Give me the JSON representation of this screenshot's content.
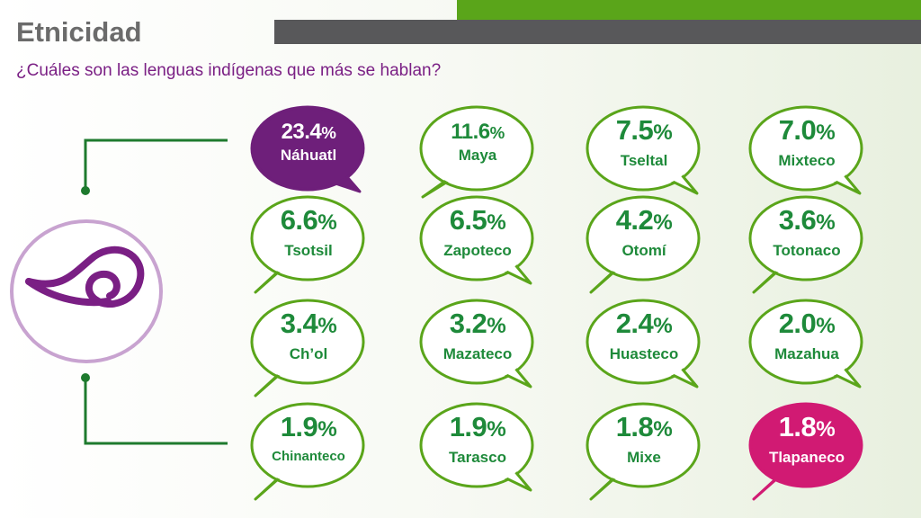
{
  "header": {
    "title": "Etnicidad",
    "subtitle": "¿Cuáles son las lenguas indígenas que más se hablan?"
  },
  "colors": {
    "green_text": "#1e8a3a",
    "bubble_outline": "#5aa51a",
    "highlight_top": "#6e1f7a",
    "highlight_bottom": "#d11a73",
    "topbar_green": "#5aa51a",
    "topbar_gray": "#58585a",
    "logo_purple": "#7a1f84"
  },
  "languages": [
    {
      "pct": "23.4",
      "sym": "%",
      "name": "Náhuatl"
    },
    {
      "pct": "11.6",
      "sym": "%",
      "name": "Maya"
    },
    {
      "pct": "7.5",
      "sym": "%",
      "name": "Tseltal"
    },
    {
      "pct": "7.0",
      "sym": "%",
      "name": "Mixteco"
    },
    {
      "pct": "6.6",
      "sym": "%",
      "name": "Tsotsil"
    },
    {
      "pct": "6.5",
      "sym": "%",
      "name": "Zapoteco"
    },
    {
      "pct": "4.2",
      "sym": "%",
      "name": "Otomí"
    },
    {
      "pct": "3.6",
      "sym": "%",
      "name": "Totonaco"
    },
    {
      "pct": "3.4",
      "sym": "%",
      "name": "Ch’ol"
    },
    {
      "pct": "3.2",
      "sym": "%",
      "name": "Mazateco"
    },
    {
      "pct": "2.4",
      "sym": "%",
      "name": "Huasteco"
    },
    {
      "pct": "2.0",
      "sym": "%",
      "name": "Mazahua"
    },
    {
      "pct": "1.9",
      "sym": "%",
      "name": "Chinanteco"
    },
    {
      "pct": "1.9",
      "sym": "%",
      "name": "Tarasco"
    },
    {
      "pct": "1.8",
      "sym": "%",
      "name": "Mixe"
    },
    {
      "pct": "1.8",
      "sym": "%",
      "name": "Tlapaneco"
    }
  ]
}
